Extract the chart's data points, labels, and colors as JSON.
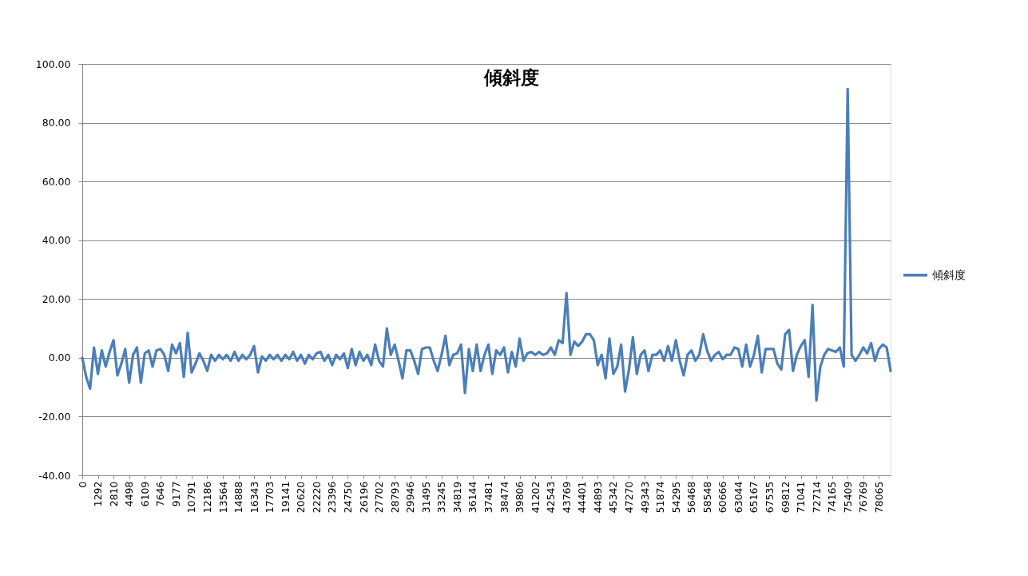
{
  "chart_data": {
    "type": "line",
    "title": "傾斜度",
    "categories": [
      "0",
      null,
      null,
      null,
      "1292",
      null,
      null,
      null,
      "2810",
      null,
      null,
      null,
      "4498",
      null,
      null,
      null,
      "6109",
      null,
      null,
      null,
      "7646",
      null,
      null,
      null,
      "9177",
      null,
      null,
      null,
      "10791",
      null,
      null,
      null,
      "12186",
      null,
      null,
      null,
      "13564",
      null,
      null,
      null,
      "14888",
      null,
      null,
      null,
      "16343",
      null,
      null,
      null,
      "17703",
      null,
      null,
      null,
      "19141",
      null,
      null,
      null,
      "20620",
      null,
      null,
      null,
      "22220",
      null,
      null,
      null,
      "23396",
      null,
      null,
      null,
      "24750",
      null,
      null,
      null,
      "26196",
      null,
      null,
      null,
      "27702",
      null,
      null,
      null,
      "28793",
      null,
      null,
      null,
      "29946",
      null,
      null,
      null,
      "31495",
      null,
      null,
      null,
      "33245",
      null,
      null,
      null,
      "34819",
      null,
      null,
      null,
      "36144",
      null,
      null,
      null,
      "37481",
      null,
      null,
      null,
      "38474",
      null,
      null,
      null,
      "39806",
      null,
      null,
      null,
      "41202",
      null,
      null,
      null,
      "42543",
      null,
      null,
      null,
      "43769",
      null,
      null,
      null,
      "44401",
      null,
      null,
      null,
      "44893",
      null,
      null,
      null,
      "45342",
      null,
      null,
      null,
      "47270",
      null,
      null,
      null,
      "49343",
      null,
      null,
      null,
      "51874",
      null,
      null,
      null,
      "54295",
      null,
      null,
      null,
      "56468",
      null,
      null,
      null,
      "58548",
      null,
      null,
      null,
      "60666",
      null,
      null,
      null,
      "63044",
      null,
      null,
      null,
      "65167",
      null,
      null,
      null,
      "67535",
      null,
      null,
      null,
      "69812",
      null,
      null,
      null,
      "71041",
      null,
      null,
      null,
      "72714",
      null,
      null,
      null,
      "74165",
      null,
      null,
      null,
      "75409",
      null,
      null,
      null,
      "76769",
      null,
      null,
      null,
      "78065",
      null,
      null,
      null
    ],
    "series": [
      {
        "name": "傾斜度",
        "color": "#4a7ebb",
        "values": [
          0,
          -6.5,
          -10.5,
          3.5,
          -5.5,
          2.5,
          -3,
          2,
          6,
          -6,
          -2,
          3,
          -8.5,
          1,
          3.5,
          -8.5,
          1.5,
          2.5,
          -3,
          2.5,
          3,
          1,
          -4.5,
          4.5,
          1.5,
          5,
          -6.5,
          8.5,
          -5,
          -2,
          1.5,
          -1,
          -4.5,
          1,
          -1,
          1,
          -0.5,
          1,
          -1,
          2,
          -1,
          1,
          -0.5,
          1,
          4,
          -5,
          0.5,
          -1,
          1,
          -0.5,
          1,
          -1,
          1,
          -0.5,
          2,
          -1,
          1,
          -2,
          1,
          -0.5,
          1.5,
          2,
          -1,
          1,
          -2.5,
          1,
          -0.5,
          1.5,
          -3.5,
          3,
          -2.5,
          2,
          -1,
          1,
          -2.5,
          4.5,
          -1,
          -3,
          10,
          1,
          4.5,
          -1,
          -7,
          2.5,
          2.5,
          -1,
          -5.5,
          3,
          3.5,
          3.5,
          -1,
          -4.5,
          1,
          7.5,
          -2.5,
          1,
          1.5,
          4.5,
          -12,
          3,
          -4.5,
          4.5,
          -4.5,
          1,
          4.5,
          -5.5,
          2.5,
          1,
          3.5,
          -5,
          2,
          -3,
          6.5,
          -1,
          1.5,
          2,
          1,
          2,
          1,
          1.5,
          3.5,
          1,
          6,
          5,
          22,
          1,
          5.5,
          4,
          5.5,
          8,
          8,
          6,
          -2.5,
          1,
          -7,
          6.5,
          -5.5,
          -3,
          4.5,
          -11.5,
          -4,
          7,
          -5.5,
          1,
          2.5,
          -4.5,
          1,
          1,
          2.5,
          -1,
          4,
          -1,
          6,
          -1,
          -6,
          1,
          2.5,
          -1,
          1,
          8,
          2.5,
          -1,
          1,
          2,
          -0.5,
          1,
          1,
          3.5,
          3,
          -3,
          4.5,
          -3,
          1,
          7.5,
          -5,
          3,
          3,
          3,
          -2,
          -4,
          8,
          9.5,
          -4.5,
          1,
          4,
          6,
          -6.5,
          18,
          -14.5,
          -3,
          1,
          3,
          2.5,
          2,
          3.5,
          -3,
          91.5,
          1,
          -1,
          1,
          3.5,
          1.5,
          5,
          -1,
          3,
          4.5,
          3.5,
          -4.5
        ]
      }
    ],
    "ylim": [
      -40,
      100
    ],
    "yticks": [
      {
        "value": -40,
        "label": "-40.00"
      },
      {
        "value": -20,
        "label": "-20.00"
      },
      {
        "value": 0,
        "label": "0.00"
      },
      {
        "value": 20,
        "label": "20.00"
      },
      {
        "value": 40,
        "label": "40.00"
      },
      {
        "value": 60,
        "label": "60.00"
      },
      {
        "value": 80,
        "label": "80.00"
      },
      {
        "value": 100,
        "label": "100.00"
      }
    ],
    "grid": "y",
    "legend": "right",
    "line_style": "solid"
  }
}
